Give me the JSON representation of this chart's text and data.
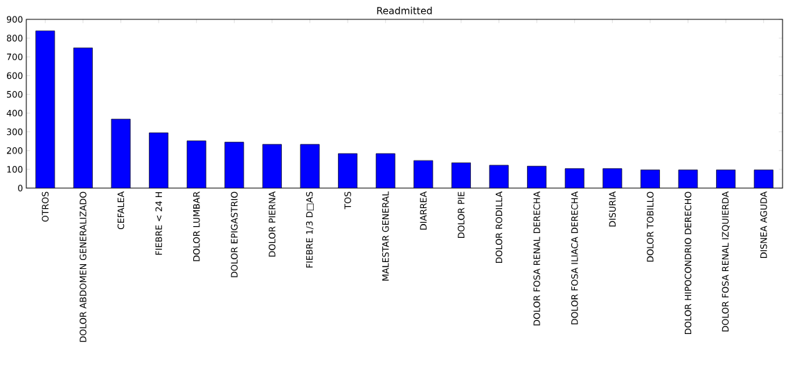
{
  "chart_data": {
    "type": "bar",
    "title": "Readmitted",
    "categories": [
      "OTROS",
      "DOLOR ABDOMEN GENERALIZADO",
      "CEFALEA",
      "FIEBRE < 24 H",
      "DOLOR LUMBAR",
      "DOLOR EPIGASTRIO",
      "DOLOR PIERNA",
      "FIEBRE 1/3 D□AS",
      "TOS",
      "MALESTAR GENERAL",
      "DIARREA",
      "DOLOR PIE",
      "DOLOR RODILLA",
      "DOLOR FOSA RENAL DERECHA",
      "DOLOR FOSA ILIACA DERECHA",
      "DISURIA",
      "DOLOR TOBILLO",
      "DOLOR HIPOCONDRIO DERECHO",
      "DOLOR FOSA RENAL IZQUIERDA",
      "DISNEA AGUDA"
    ],
    "values": [
      839,
      748,
      368,
      295,
      252,
      245,
      233,
      233,
      184,
      184,
      147,
      135,
      122,
      117,
      104,
      104,
      97,
      97,
      97,
      97
    ],
    "color": "#0000ff",
    "ylim": [
      0,
      900
    ],
    "yticks": [
      0,
      100,
      200,
      300,
      400,
      500,
      600,
      700,
      800,
      900
    ],
    "grid": false
  }
}
